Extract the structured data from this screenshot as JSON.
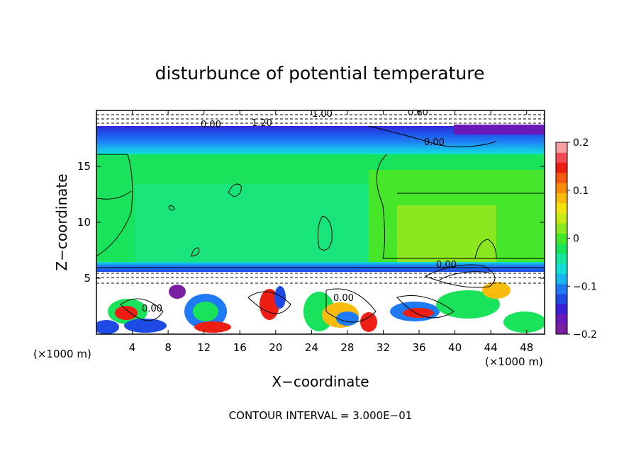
{
  "chart_data": {
    "type": "heatmap",
    "title": "disturbunce of potential temperature",
    "xlabel": "X−coordinate",
    "ylabel": "Z−coordinate",
    "x_unit": "(×1000 m)",
    "y_unit": "(×1000 m)",
    "xlim": [
      0,
      50
    ],
    "ylim": [
      0,
      20
    ],
    "x_ticks": [
      "4",
      "8",
      "12",
      "16",
      "20",
      "24",
      "28",
      "32",
      "36",
      "40",
      "44",
      "48"
    ],
    "y_ticks": [
      "5",
      "10",
      "15"
    ],
    "colorbar": {
      "range": [
        -0.2,
        0.2
      ],
      "tick_labels": [
        "0.2",
        "0.1",
        "0",
        "−0.1",
        "−0.2"
      ],
      "colors": [
        "#7b1fa2",
        "#6a1ab8",
        "#3b1fd6",
        "#1e4be6",
        "#1f7bf5",
        "#19b6f0",
        "#10e0d8",
        "#16e6a0",
        "#18e35a",
        "#46e62a",
        "#8ce81e",
        "#c6ea14",
        "#f2e310",
        "#f9bb0c",
        "#f98a0a",
        "#f55a0c",
        "#ee1f12",
        "#f24a52",
        "#f7a0a4"
      ]
    },
    "contour_labels": [
      "1.00",
      "0.60",
      "0.00",
      "1.20",
      "0.00",
      "0.00",
      "0.00",
      "0.00"
    ],
    "contour_interval": "CONTOUR INTERVAL = 3.000E−01",
    "bands": [
      {
        "z": [
          0,
          5.8
        ],
        "value": "mixed/turbulent"
      },
      {
        "z": [
          5.8,
          16.2
        ],
        "value": 0.0
      },
      {
        "z": [
          16.2,
          18.5
        ],
        "value": -0.2
      },
      {
        "z": [
          18.5,
          20
        ],
        "value": "mixed"
      }
    ]
  }
}
